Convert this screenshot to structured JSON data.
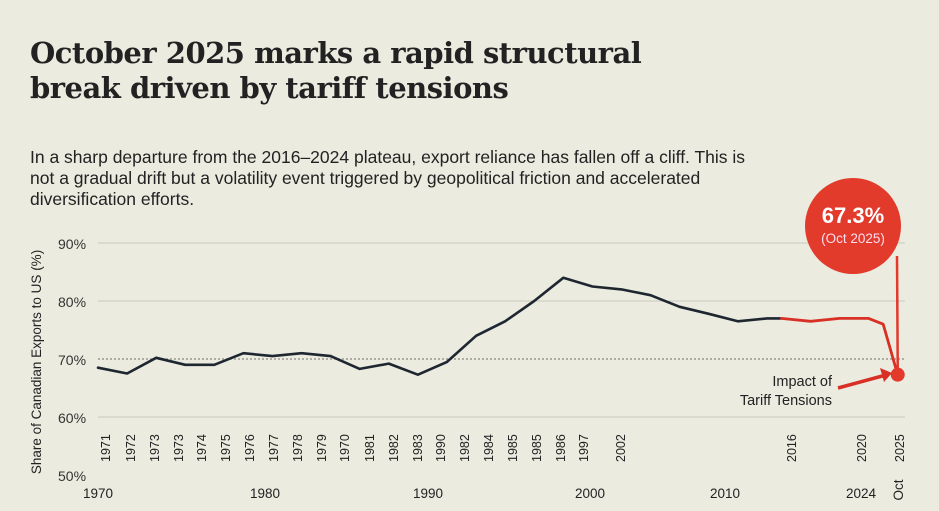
{
  "title": "October 2025 marks a rapid structural break driven by tariff tensions",
  "subtitle": "In a sharp departure from the 2016–2024 plateau, export reliance has fallen off a cliff. This is not a gradual drift but a volatility event triggered by geopolitical friction and accelerated diversification efforts.",
  "chart_data": {
    "type": "line",
    "ylabel": "Share of Canadian Exports to US (%)",
    "ylim": [
      50,
      90
    ],
    "yticks": [
      "50%",
      "60%",
      "70%",
      "80%",
      "90%"
    ],
    "reference_line": 70,
    "grid": true,
    "x_major_labels": [
      "1970",
      "1980",
      "1990",
      "2000",
      "2010",
      "2024",
      "Oct"
    ],
    "x_minor_labels": [
      "1971",
      "1972",
      "1973",
      "1973",
      "1974",
      "1975",
      "1976",
      "1977",
      "1978",
      "1979",
      "1970",
      "1981",
      "1982",
      "1983",
      "1990",
      "1982",
      "1984",
      "1985",
      "1985",
      "1986",
      "1997",
      "2002",
      "2016",
      "2020",
      "2025"
    ],
    "series": [
      {
        "color": "#1e2630",
        "x": [
          1970,
          1972,
          1974,
          1976,
          1978,
          1980,
          1982,
          1984,
          1986,
          1988,
          1990,
          1992,
          1994,
          1996,
          1998,
          2000,
          2002,
          2004,
          2006,
          2008,
          2010,
          2012,
          2014,
          2016,
          2017
        ],
        "values": [
          68.5,
          67.5,
          70.2,
          69.0,
          69.0,
          71.0,
          70.5,
          71.0,
          70.5,
          68.3,
          69.2,
          67.3,
          69.5,
          74.0,
          76.5,
          80.0,
          84.0,
          82.5,
          82.0,
          81.0,
          79.0,
          77.8,
          76.5,
          77.0,
          77.0
        ]
      },
      {
        "color": "#d93025",
        "x": [
          2017,
          2019,
          2021,
          2023,
          2024,
          2025
        ],
        "values": [
          77.0,
          76.5,
          77.0,
          77.0,
          76.0,
          67.3
        ]
      }
    ],
    "callout": {
      "value": "67.3%",
      "label": "(Oct 2025)",
      "color": "#e23a2b"
    },
    "annotation": "Impact of Tariff Tensions",
    "annotation_lines": [
      "Impact of",
      "Tariff Tensions"
    ]
  }
}
